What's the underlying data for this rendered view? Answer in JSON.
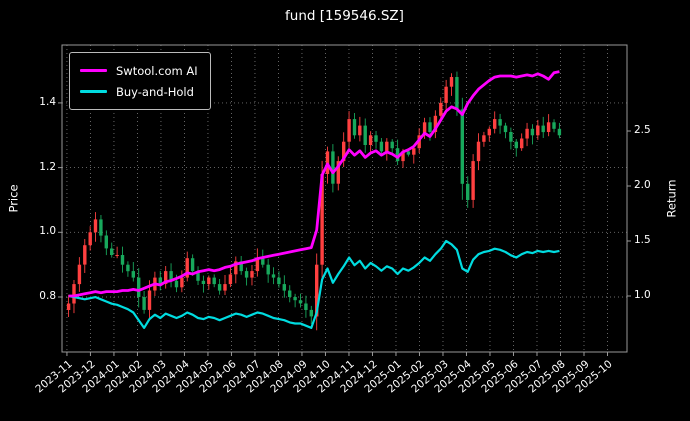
{
  "chart_data": {
    "type": "candlestick",
    "title": "fund [159546.SZ]",
    "ylabel_left": "Price",
    "ylabel_right": "Return",
    "legend_position": "upper left",
    "axes": {
      "x_ticklabels": [
        "2023-11",
        "2023-12",
        "2024-01",
        "2024-02",
        "2024-03",
        "2024-04",
        "2024-05",
        "2024-06",
        "2024-07",
        "2024-08",
        "2024-09",
        "2024-10",
        "2024-11",
        "2024-12",
        "2025-01",
        "2025-02",
        "2025-03",
        "2025-04",
        "2025-05",
        "2025-06",
        "2025-07",
        "2025-08",
        "2025-09",
        "2025-10"
      ],
      "left_ticks": [
        0.8,
        1.0,
        1.2,
        1.4
      ],
      "right_ticks": [
        1.0,
        1.5,
        2.0,
        2.5
      ],
      "left_range": [
        0.63,
        1.579
      ],
      "right_range": [
        0.491,
        3.282
      ],
      "x_range": [
        -0.21,
        23.83
      ],
      "grid": "dotted"
    },
    "colors": {
      "up": "#ff4040",
      "down": "#18a85c",
      "ai_line": "#ff00ff",
      "bh_line": "#00dce0",
      "grid": "#707070",
      "spine": "#999999",
      "fg": "#ffffff",
      "bg": "#000000"
    },
    "candles": {
      "freq": "weekly",
      "x_start_month": 0.07,
      "x_step_months": 0.2295,
      "close": [
        0.78,
        0.84,
        0.9,
        0.96,
        1.0,
        1.04,
        0.99,
        0.95,
        0.93,
        0.93,
        0.9,
        0.88,
        0.86,
        0.8,
        0.76,
        0.82,
        0.86,
        0.84,
        0.88,
        0.85,
        0.83,
        0.86,
        0.92,
        0.88,
        0.85,
        0.84,
        0.86,
        0.84,
        0.82,
        0.84,
        0.87,
        0.91,
        0.88,
        0.86,
        0.88,
        0.92,
        0.9,
        0.87,
        0.86,
        0.84,
        0.82,
        0.8,
        0.79,
        0.78,
        0.76,
        0.74,
        0.9,
        1.18,
        1.25,
        1.15,
        1.22,
        1.28,
        1.35,
        1.3,
        1.33,
        1.27,
        1.3,
        1.28,
        1.25,
        1.28,
        1.26,
        1.22,
        1.25,
        1.24,
        1.26,
        1.3,
        1.34,
        1.31,
        1.36,
        1.4,
        1.45,
        1.48,
        1.38,
        1.15,
        1.1,
        1.22,
        1.28,
        1.3,
        1.32,
        1.35,
        1.33,
        1.31,
        1.28,
        1.26,
        1.29,
        1.32,
        1.3,
        1.33,
        1.31,
        1.34,
        1.32,
        1.3
      ]
    },
    "series": [
      {
        "name": "Swtool.com AI",
        "axis": "right",
        "color": "#ff00ff",
        "values": [
          1.0,
          1.0,
          1.01,
          1.02,
          1.03,
          1.04,
          1.03,
          1.04,
          1.04,
          1.04,
          1.05,
          1.05,
          1.06,
          1.05,
          1.07,
          1.09,
          1.11,
          1.1,
          1.13,
          1.14,
          1.16,
          1.18,
          1.21,
          1.2,
          1.22,
          1.23,
          1.24,
          1.23,
          1.24,
          1.26,
          1.27,
          1.29,
          1.3,
          1.31,
          1.32,
          1.34,
          1.35,
          1.36,
          1.37,
          1.38,
          1.39,
          1.4,
          1.41,
          1.42,
          1.43,
          1.44,
          1.6,
          2.1,
          2.2,
          2.12,
          2.18,
          2.25,
          2.33,
          2.28,
          2.32,
          2.26,
          2.3,
          2.32,
          2.28,
          2.31,
          2.29,
          2.26,
          2.31,
          2.33,
          2.36,
          2.42,
          2.48,
          2.45,
          2.52,
          2.6,
          2.68,
          2.72,
          2.7,
          2.65,
          2.75,
          2.82,
          2.88,
          2.92,
          2.96,
          2.99,
          3.0,
          3.0,
          3.0,
          2.99,
          3.0,
          3.01,
          3.0,
          3.02,
          3.0,
          2.97,
          3.03,
          3.04
        ]
      },
      {
        "name": "Buy-and-Hold",
        "axis": "right",
        "color": "#00dce0",
        "values": [
          1.0,
          0.99,
          0.98,
          0.97,
          0.98,
          0.99,
          0.97,
          0.95,
          0.93,
          0.92,
          0.9,
          0.88,
          0.85,
          0.78,
          0.71,
          0.79,
          0.83,
          0.8,
          0.84,
          0.82,
          0.8,
          0.82,
          0.85,
          0.83,
          0.8,
          0.79,
          0.81,
          0.8,
          0.78,
          0.8,
          0.82,
          0.84,
          0.83,
          0.81,
          0.83,
          0.85,
          0.84,
          0.82,
          0.8,
          0.79,
          0.78,
          0.76,
          0.75,
          0.75,
          0.73,
          0.71,
          0.85,
          1.15,
          1.25,
          1.12,
          1.2,
          1.27,
          1.35,
          1.28,
          1.32,
          1.25,
          1.3,
          1.27,
          1.23,
          1.27,
          1.25,
          1.2,
          1.25,
          1.23,
          1.26,
          1.3,
          1.35,
          1.32,
          1.38,
          1.43,
          1.5,
          1.47,
          1.42,
          1.25,
          1.22,
          1.33,
          1.38,
          1.4,
          1.41,
          1.43,
          1.42,
          1.4,
          1.37,
          1.35,
          1.38,
          1.4,
          1.39,
          1.41,
          1.4,
          1.41,
          1.4,
          1.41
        ]
      }
    ]
  }
}
